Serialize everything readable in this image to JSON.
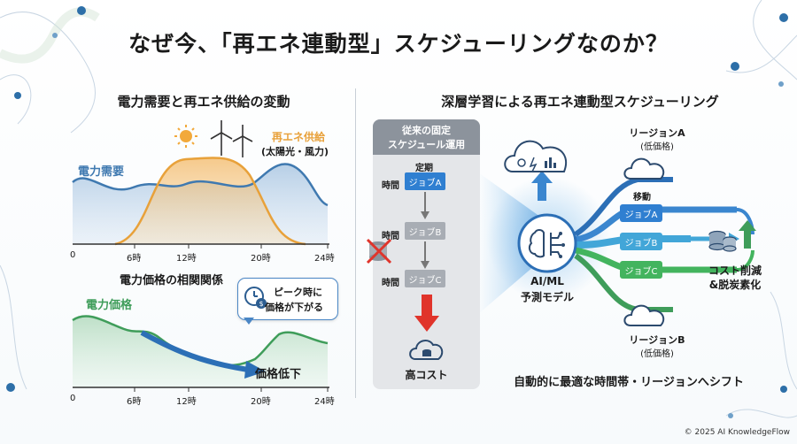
{
  "title": "なぜ今、「再エネ連動型」スケジューリングなのか？",
  "left": {
    "heading": "電力需要と再エネ供給の変動",
    "chart1": {
      "demand_label": "電力需要",
      "supply_label": "再エネ供給",
      "supply_sub": "(太陽光・風力)",
      "ticks": [
        "0",
        "6時",
        "12時",
        "20時",
        "24時"
      ]
    },
    "chart2": {
      "heading": "電力価格の相関関係",
      "price_label": "電力価格",
      "callout_line1": "ピーク時に",
      "callout_line2": "価格が下がる",
      "arrow_label": "価格低下",
      "ticks": [
        "0",
        "6時",
        "12時",
        "20時",
        "24時"
      ]
    }
  },
  "right": {
    "heading": "深層学習による再エネ連動型スケジューリング",
    "legacy": {
      "title_line1": "従来の固定",
      "title_line2": "スケジュール運用",
      "fixed_label": "定期",
      "time_label": "時間",
      "jobs": [
        "ジョブA",
        "ジョブB",
        "ジョブC"
      ],
      "cost_label": "高コスト"
    },
    "model_line1": "AI/ML",
    "model_line2": "予測モデル",
    "region_a_line1": "リージョンA",
    "region_a_line2": "(低価格)",
    "region_b_line1": "リージョンB",
    "region_b_line2": "(低価格)",
    "move_label": "移動",
    "jobs": [
      "ジョブA",
      "ジョブB",
      "ジョブC"
    ],
    "result_line1": "コスト削減",
    "result_line2": "&脱炭素化",
    "bottom_caption": "自動的に最適な時間帯・リージョンへシフト"
  },
  "copyright": "© 2025 AI KnowledgeFlow",
  "colors": {
    "demand": "#3f79b0",
    "supply": "#e8a13a",
    "price": "#3f9d5a",
    "arrow_blue": "#2c6fb6",
    "job_blue": "#2f7fd1",
    "job_teal": "#42a6d8",
    "job_green": "#43b45e",
    "red_arrow": "#e0342b"
  }
}
